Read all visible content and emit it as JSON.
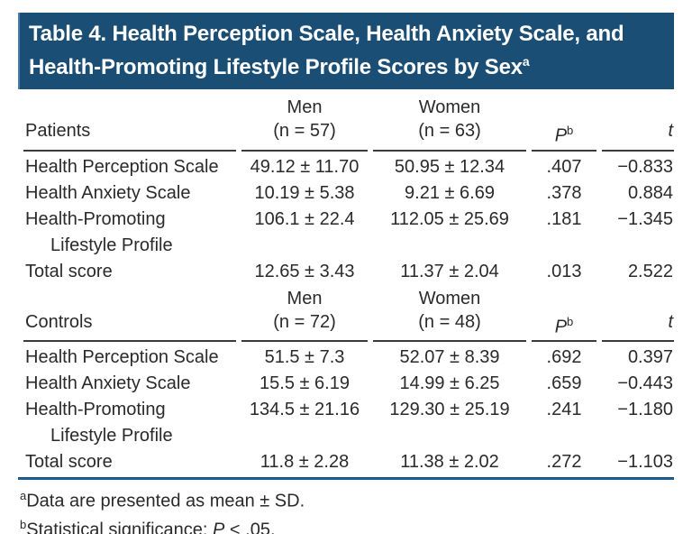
{
  "colors": {
    "title_bar_bg": "#1b4e74",
    "title_text": "#ffffff",
    "header_rule": "#3d3c3c",
    "blue_rule": "#1e6399",
    "body_text": "#2b2a29"
  },
  "title": {
    "line1": "Table 4. Health Perception Scale, Health Anxiety Scale, and",
    "line2": "Health-Promoting Lifestyle Profile Scores by Sex",
    "sup": "a"
  },
  "sections": [
    {
      "group_label": "Patients",
      "men_header": "Men",
      "men_n": "(n = 57)",
      "women_header": "Women",
      "women_n": "(n = 63)",
      "p_header": "P",
      "p_header_sup": "b",
      "t_header": "t",
      "rows": [
        {
          "label": "Health Perception Scale",
          "men": "49.12 ± 11.70",
          "women": "50.95 ± 12.34",
          "p": ".407",
          "t": "−0.833"
        },
        {
          "label": "Health Anxiety Scale",
          "men": "10.19 ± 5.38",
          "women": "9.21 ± 6.69",
          "p": ".378",
          "t": "0.884"
        },
        {
          "label": "Health-Promoting",
          "label_cont": "Lifestyle Profile",
          "men": "106.1 ± 22.4",
          "women": "112.05 ± 25.69",
          "p": ".181",
          "t": "−1.345"
        },
        {
          "label": "Total score",
          "men": "12.65 ± 3.43",
          "women": "11.37 ± 2.04",
          "p": ".013",
          "t": "2.522"
        }
      ]
    },
    {
      "group_label": "Controls",
      "men_header": "Men",
      "men_n": "(n = 72)",
      "women_header": "Women",
      "women_n": "(n = 48)",
      "p_header": "P",
      "p_header_sup": "b",
      "t_header": "t",
      "rows": [
        {
          "label": "Health Perception Scale",
          "men": "51.5 ± 7.3",
          "women": "52.07 ± 8.39",
          "p": ".692",
          "t": "0.397"
        },
        {
          "label": "Health Anxiety Scale",
          "men": "15.5 ± 6.19",
          "women": "14.99 ± 6.25",
          "p": ".659",
          "t": "−0.443"
        },
        {
          "label": "Health-Promoting",
          "label_cont": "Lifestyle Profile",
          "men": "134.5 ± 21.16",
          "women": "129.30 ± 25.19",
          "p": ".241",
          "t": "−1.180"
        },
        {
          "label": "Total score",
          "men": "11.8 ± 2.28",
          "women": "11.38 ± 2.02",
          "p": ".272",
          "t": "−1.103"
        }
      ]
    }
  ],
  "footnotes": [
    {
      "sup": "a",
      "pre": "Data are presented as mean ± SD.",
      "italic": "",
      "post": ""
    },
    {
      "sup": "b",
      "pre": "Statistical significance: ",
      "italic": "P",
      "post": " < .05."
    }
  ]
}
